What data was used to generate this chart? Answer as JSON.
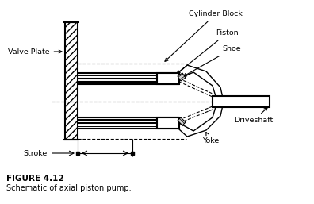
{
  "bg_color": "#ffffff",
  "line_color": "#000000",
  "title": "FIGURE 4.12",
  "subtitle": "Schematic of axial piston pump.",
  "labels": {
    "valve_plate": "Valve Plate",
    "cylinder_block": "Cylinder Block",
    "piston": "Piston",
    "shoe": "Shoe",
    "driveshaft": "Driveshaft",
    "yoke": "Yoke",
    "stroke": "Stroke"
  },
  "figsize": [
    3.96,
    2.57
  ],
  "dpi": 100
}
